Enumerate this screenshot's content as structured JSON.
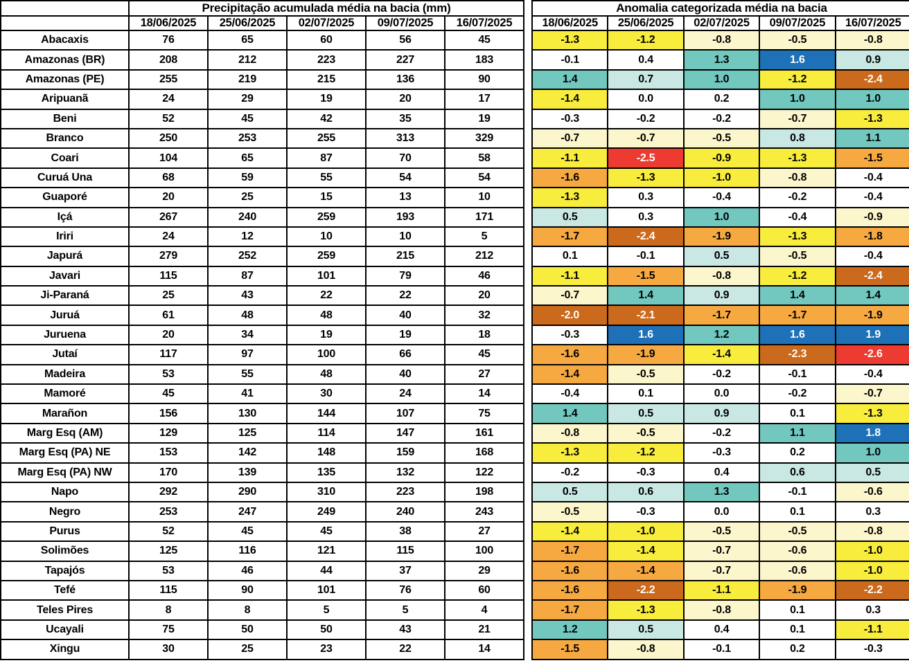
{
  "chart_data": {
    "type": "table",
    "precip_title": "Precipitação acumulada média na bacia (mm)",
    "anomaly_title": "Anomalia categorizada média na bacia",
    "dates": [
      "18/06/2025",
      "25/06/2025",
      "02/07/2025",
      "09/07/2025",
      "16/07/2025"
    ],
    "category_colors": {
      "white": {
        "bg": "#ffffff",
        "text": "#000000"
      },
      "cream": {
        "bg": "#fcf6cd",
        "text": "#000000"
      },
      "yellow": {
        "bg": "#f8ec3d",
        "text": "#000000"
      },
      "orange": {
        "bg": "#f6a941",
        "text": "#000000"
      },
      "dark_orange": {
        "bg": "#cb6a1d",
        "text": "#ffffff"
      },
      "red": {
        "bg": "#ee3b31",
        "text": "#ffffff"
      },
      "pale_teal": {
        "bg": "#c9e8e4",
        "text": "#000000"
      },
      "teal": {
        "bg": "#72c8bf",
        "text": "#000000"
      },
      "blue": {
        "bg": "#1e70b7",
        "text": "#ffffff"
      }
    },
    "rows": [
      {
        "basin": "Abacaxis",
        "precip": [
          76,
          65,
          60,
          56,
          45
        ],
        "anomaly": [
          "-1.3",
          "-1.2",
          "-0.8",
          "-0.5",
          "-0.8"
        ],
        "anomaly_cat": [
          "yellow",
          "yellow",
          "cream",
          "cream",
          "cream"
        ]
      },
      {
        "basin": "Amazonas (BR)",
        "precip": [
          208,
          212,
          223,
          227,
          183
        ],
        "anomaly": [
          "-0.1",
          "0.4",
          "1.3",
          "1.6",
          "0.9"
        ],
        "anomaly_cat": [
          "white",
          "white",
          "teal",
          "blue",
          "pale_teal"
        ]
      },
      {
        "basin": "Amazonas (PE)",
        "precip": [
          255,
          219,
          215,
          136,
          90
        ],
        "anomaly": [
          "1.4",
          "0.7",
          "1.0",
          "-1.2",
          "-2.4"
        ],
        "anomaly_cat": [
          "teal",
          "pale_teal",
          "teal",
          "yellow",
          "dark_orange"
        ]
      },
      {
        "basin": "Aripuanã",
        "precip": [
          24,
          29,
          19,
          20,
          17
        ],
        "anomaly": [
          "-1.4",
          "0.0",
          "0.2",
          "1.0",
          "1.0"
        ],
        "anomaly_cat": [
          "yellow",
          "white",
          "white",
          "teal",
          "teal"
        ]
      },
      {
        "basin": "Beni",
        "precip": [
          52,
          45,
          42,
          35,
          19
        ],
        "anomaly": [
          "-0.3",
          "-0.2",
          "-0.2",
          "-0.7",
          "-1.3"
        ],
        "anomaly_cat": [
          "white",
          "white",
          "white",
          "cream",
          "yellow"
        ]
      },
      {
        "basin": "Branco",
        "precip": [
          250,
          253,
          255,
          313,
          329
        ],
        "anomaly": [
          "-0.7",
          "-0.7",
          "-0.5",
          "0.8",
          "1.1"
        ],
        "anomaly_cat": [
          "cream",
          "cream",
          "cream",
          "pale_teal",
          "teal"
        ]
      },
      {
        "basin": "Coari",
        "precip": [
          104,
          65,
          87,
          70,
          58
        ],
        "anomaly": [
          "-1.1",
          "-2.5",
          "-0.9",
          "-1.3",
          "-1.5"
        ],
        "anomaly_cat": [
          "yellow",
          "red",
          "yellow",
          "yellow",
          "orange"
        ]
      },
      {
        "basin": "Curuá Una",
        "precip": [
          68,
          59,
          55,
          54,
          54
        ],
        "anomaly": [
          "-1.6",
          "-1.3",
          "-1.0",
          "-0.8",
          "-0.4"
        ],
        "anomaly_cat": [
          "orange",
          "yellow",
          "yellow",
          "cream",
          "white"
        ]
      },
      {
        "basin": "Guaporé",
        "precip": [
          20,
          25,
          15,
          13,
          10
        ],
        "anomaly": [
          "-1.3",
          "0.3",
          "-0.4",
          "-0.2",
          "-0.4"
        ],
        "anomaly_cat": [
          "yellow",
          "white",
          "white",
          "white",
          "white"
        ]
      },
      {
        "basin": "Içá",
        "precip": [
          267,
          240,
          259,
          193,
          171
        ],
        "anomaly": [
          "0.5",
          "0.3",
          "1.0",
          "-0.4",
          "-0.9"
        ],
        "anomaly_cat": [
          "pale_teal",
          "white",
          "teal",
          "white",
          "cream"
        ]
      },
      {
        "basin": "Iriri",
        "precip": [
          24,
          12,
          10,
          10,
          5
        ],
        "anomaly": [
          "-1.7",
          "-2.4",
          "-1.9",
          "-1.3",
          "-1.8"
        ],
        "anomaly_cat": [
          "orange",
          "dark_orange",
          "orange",
          "yellow",
          "orange"
        ]
      },
      {
        "basin": "Japurá",
        "precip": [
          279,
          252,
          259,
          215,
          212
        ],
        "anomaly": [
          "0.1",
          "-0.1",
          "0.5",
          "-0.5",
          "-0.4"
        ],
        "anomaly_cat": [
          "white",
          "white",
          "pale_teal",
          "cream",
          "white"
        ]
      },
      {
        "basin": "Javari",
        "precip": [
          115,
          87,
          101,
          79,
          46
        ],
        "anomaly": [
          "-1.1",
          "-1.5",
          "-0.8",
          "-1.2",
          "-2.4"
        ],
        "anomaly_cat": [
          "yellow",
          "orange",
          "cream",
          "yellow",
          "dark_orange"
        ]
      },
      {
        "basin": "Ji-Paraná",
        "precip": [
          25,
          43,
          22,
          22,
          20
        ],
        "anomaly": [
          "-0.7",
          "1.4",
          "0.9",
          "1.4",
          "1.4"
        ],
        "anomaly_cat": [
          "cream",
          "teal",
          "pale_teal",
          "teal",
          "teal"
        ]
      },
      {
        "basin": "Juruá",
        "precip": [
          61,
          48,
          48,
          40,
          32
        ],
        "anomaly": [
          "-2.0",
          "-2.1",
          "-1.7",
          "-1.7",
          "-1.9"
        ],
        "anomaly_cat": [
          "dark_orange",
          "dark_orange",
          "orange",
          "orange",
          "orange"
        ]
      },
      {
        "basin": "Juruena",
        "precip": [
          20,
          34,
          19,
          19,
          18
        ],
        "anomaly": [
          "-0.3",
          "1.6",
          "1.2",
          "1.6",
          "1.9"
        ],
        "anomaly_cat": [
          "white",
          "blue",
          "teal",
          "blue",
          "blue"
        ]
      },
      {
        "basin": "Jutaí",
        "precip": [
          117,
          97,
          100,
          66,
          45
        ],
        "anomaly": [
          "-1.6",
          "-1.9",
          "-1.4",
          "-2.3",
          "-2.6"
        ],
        "anomaly_cat": [
          "orange",
          "orange",
          "yellow",
          "dark_orange",
          "red"
        ]
      },
      {
        "basin": "Madeira",
        "precip": [
          53,
          55,
          48,
          40,
          27
        ],
        "anomaly": [
          "-1.4",
          "-0.5",
          "-0.2",
          "-0.1",
          "-0.4"
        ],
        "anomaly_cat": [
          "orange",
          "cream",
          "white",
          "white",
          "white"
        ]
      },
      {
        "basin": "Mamoré",
        "precip": [
          45,
          41,
          30,
          24,
          14
        ],
        "anomaly": [
          "-0.4",
          "0.1",
          "0.0",
          "-0.2",
          "-0.7"
        ],
        "anomaly_cat": [
          "white",
          "white",
          "white",
          "white",
          "cream"
        ]
      },
      {
        "basin": "Marañon",
        "precip": [
          156,
          130,
          144,
          107,
          75
        ],
        "anomaly": [
          "1.4",
          "0.5",
          "0.9",
          "0.1",
          "-1.3"
        ],
        "anomaly_cat": [
          "teal",
          "pale_teal",
          "pale_teal",
          "white",
          "yellow"
        ]
      },
      {
        "basin": "Marg Esq (AM)",
        "precip": [
          129,
          125,
          114,
          147,
          161
        ],
        "anomaly": [
          "-0.8",
          "-0.5",
          "-0.2",
          "1.1",
          "1.8"
        ],
        "anomaly_cat": [
          "cream",
          "cream",
          "white",
          "teal",
          "blue"
        ]
      },
      {
        "basin": "Marg Esq (PA) NE",
        "precip": [
          153,
          142,
          148,
          159,
          168
        ],
        "anomaly": [
          "-1.3",
          "-1.2",
          "-0.3",
          "0.2",
          "1.0"
        ],
        "anomaly_cat": [
          "yellow",
          "yellow",
          "white",
          "white",
          "teal"
        ]
      },
      {
        "basin": "Marg Esq (PA) NW",
        "precip": [
          170,
          139,
          135,
          132,
          122
        ],
        "anomaly": [
          "-0.2",
          "-0.3",
          "0.4",
          "0.6",
          "0.5"
        ],
        "anomaly_cat": [
          "white",
          "white",
          "white",
          "pale_teal",
          "pale_teal"
        ]
      },
      {
        "basin": "Napo",
        "precip": [
          292,
          290,
          310,
          223,
          198
        ],
        "anomaly": [
          "0.5",
          "0.6",
          "1.3",
          "-0.1",
          "-0.6"
        ],
        "anomaly_cat": [
          "pale_teal",
          "pale_teal",
          "teal",
          "white",
          "cream"
        ]
      },
      {
        "basin": "Negro",
        "precip": [
          253,
          247,
          249,
          240,
          243
        ],
        "anomaly": [
          "-0.5",
          "-0.3",
          "0.0",
          "0.1",
          "0.3"
        ],
        "anomaly_cat": [
          "cream",
          "white",
          "white",
          "white",
          "white"
        ]
      },
      {
        "basin": "Purus",
        "precip": [
          52,
          45,
          45,
          38,
          27
        ],
        "anomaly": [
          "-1.4",
          "-1.0",
          "-0.5",
          "-0.5",
          "-0.8"
        ],
        "anomaly_cat": [
          "yellow",
          "yellow",
          "cream",
          "cream",
          "cream"
        ]
      },
      {
        "basin": "Solimões",
        "precip": [
          125,
          116,
          121,
          115,
          100
        ],
        "anomaly": [
          "-1.7",
          "-1.4",
          "-0.7",
          "-0.6",
          "-1.0"
        ],
        "anomaly_cat": [
          "orange",
          "yellow",
          "cream",
          "cream",
          "yellow"
        ]
      },
      {
        "basin": "Tapajós",
        "precip": [
          53,
          46,
          44,
          37,
          29
        ],
        "anomaly": [
          "-1.6",
          "-1.4",
          "-0.7",
          "-0.6",
          "-1.0"
        ],
        "anomaly_cat": [
          "orange",
          "orange",
          "cream",
          "cream",
          "yellow"
        ]
      },
      {
        "basin": "Tefé",
        "precip": [
          115,
          90,
          101,
          76,
          60
        ],
        "anomaly": [
          "-1.6",
          "-2.2",
          "-1.1",
          "-1.9",
          "-2.2"
        ],
        "anomaly_cat": [
          "orange",
          "dark_orange",
          "yellow",
          "orange",
          "dark_orange"
        ]
      },
      {
        "basin": "Teles Pires",
        "precip": [
          8,
          8,
          5,
          5,
          4
        ],
        "anomaly": [
          "-1.7",
          "-1.3",
          "-0.8",
          "0.1",
          "0.3"
        ],
        "anomaly_cat": [
          "orange",
          "yellow",
          "cream",
          "white",
          "white"
        ]
      },
      {
        "basin": "Ucayali",
        "precip": [
          75,
          50,
          50,
          43,
          21
        ],
        "anomaly": [
          "1.2",
          "0.5",
          "0.4",
          "0.1",
          "-1.1"
        ],
        "anomaly_cat": [
          "teal",
          "pale_teal",
          "white",
          "white",
          "yellow"
        ]
      },
      {
        "basin": "Xingu",
        "precip": [
          30,
          25,
          23,
          22,
          14
        ],
        "anomaly": [
          "-1.5",
          "-0.8",
          "-0.1",
          "0.2",
          "-0.3"
        ],
        "anomaly_cat": [
          "orange",
          "cream",
          "white",
          "white",
          "white"
        ]
      }
    ]
  }
}
